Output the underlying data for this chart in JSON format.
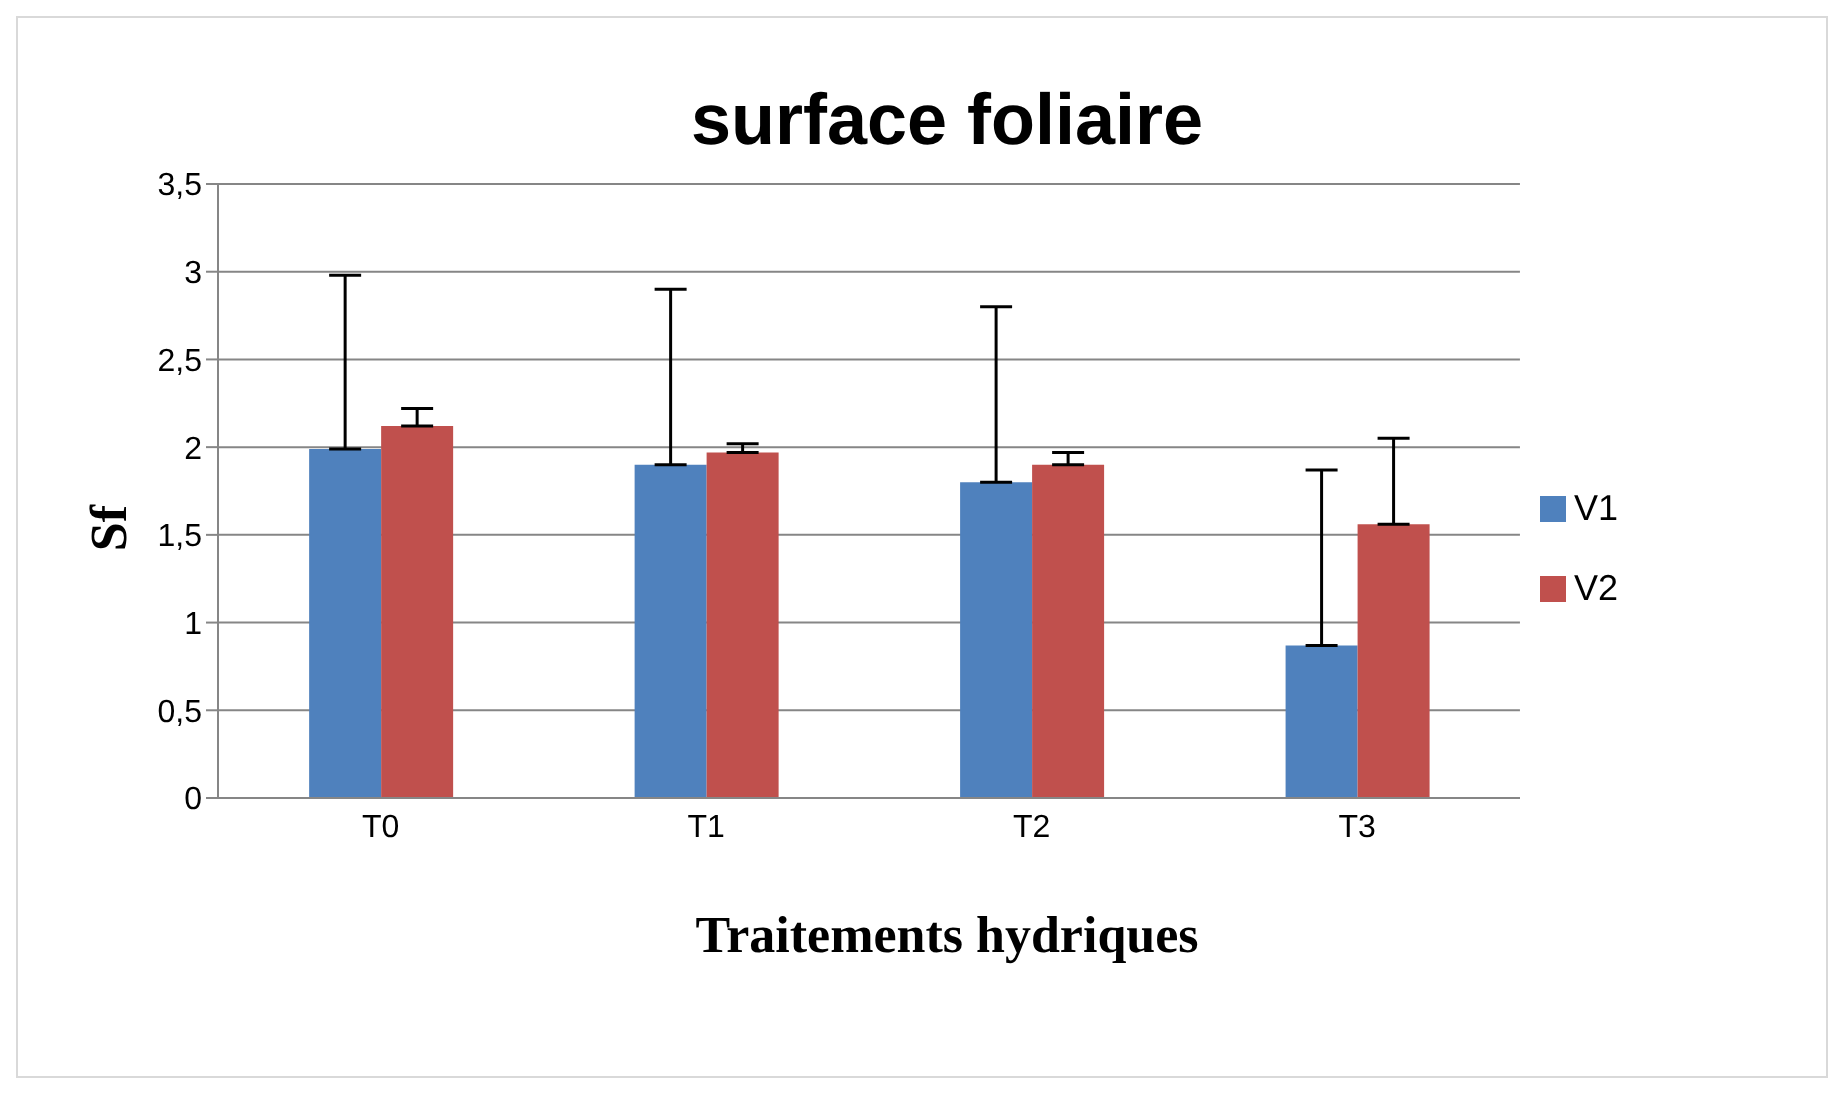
{
  "chart_data": {
    "type": "bar",
    "title": "surface foliaire",
    "xlabel": "Traitements hydriques",
    "ylabel": "Sf",
    "categories": [
      "T0",
      "T1",
      "T2",
      "T3"
    ],
    "series": [
      {
        "name": "V1",
        "color": "#4f81bd",
        "values": [
          1.99,
          1.9,
          1.8,
          0.87
        ],
        "errors": [
          [
            1.99,
            2.98
          ],
          [
            1.9,
            2.9
          ],
          [
            1.8,
            2.8
          ],
          [
            0.87,
            1.87
          ]
        ]
      },
      {
        "name": "V2",
        "color": "#c0504d",
        "values": [
          2.12,
          1.97,
          1.9,
          1.56
        ],
        "errors": [
          [
            2.12,
            2.22
          ],
          [
            1.97,
            2.02
          ],
          [
            1.9,
            1.97
          ],
          [
            1.56,
            2.05
          ]
        ]
      }
    ],
    "ylim": [
      0,
      3.5
    ],
    "yticks": [
      0,
      {
        "value": 0.5,
        "label": "0,5"
      },
      1,
      {
        "value": 1.5,
        "label": "1,5"
      },
      2,
      {
        "value": 2.5,
        "label": "2,5"
      },
      3,
      {
        "value": 3.5,
        "label": "3,5"
      }
    ],
    "grid": "y",
    "legend": "right"
  }
}
